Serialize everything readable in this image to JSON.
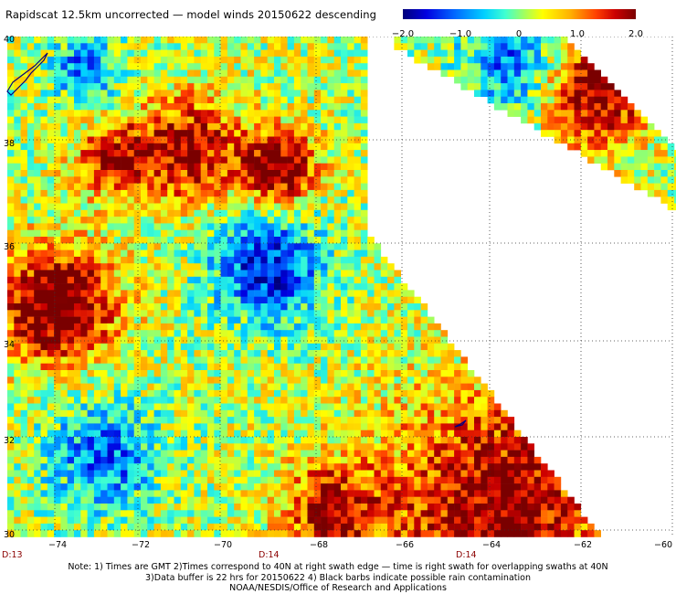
{
  "title": "Rapidscat 12.5km uncorrected — model winds 20150622 descending",
  "colorbar": {
    "labels": [
      "−2.0",
      "−1.0",
      "0",
      "1.0",
      "2.0"
    ],
    "min": -2.0,
    "max": 2.0
  },
  "map": {
    "lon_range": [
      -75,
      -60
    ],
    "lat_range": [
      30,
      40
    ],
    "lat_labels": [
      "40",
      "38",
      "36",
      "34",
      "32",
      "30"
    ],
    "lon_labels": [
      "−74",
      "−72",
      "−70",
      "−68",
      "−66",
      "−64",
      "−62",
      "−60"
    ],
    "time_labels": [
      "D:13",
      "D:14",
      "D:14"
    ],
    "grid": "dotted"
  },
  "notes": [
    "Note: 1) Times are GMT 2)Times correspond to 40N at right swath edge — time is right swath for overlapping swaths at 40N",
    "3)Data buffer is 22 hrs for 20150622 4) Black barbs indicate possible rain contamination",
    "NOAA/NESDIS/Office of Research and Applications"
  ]
}
